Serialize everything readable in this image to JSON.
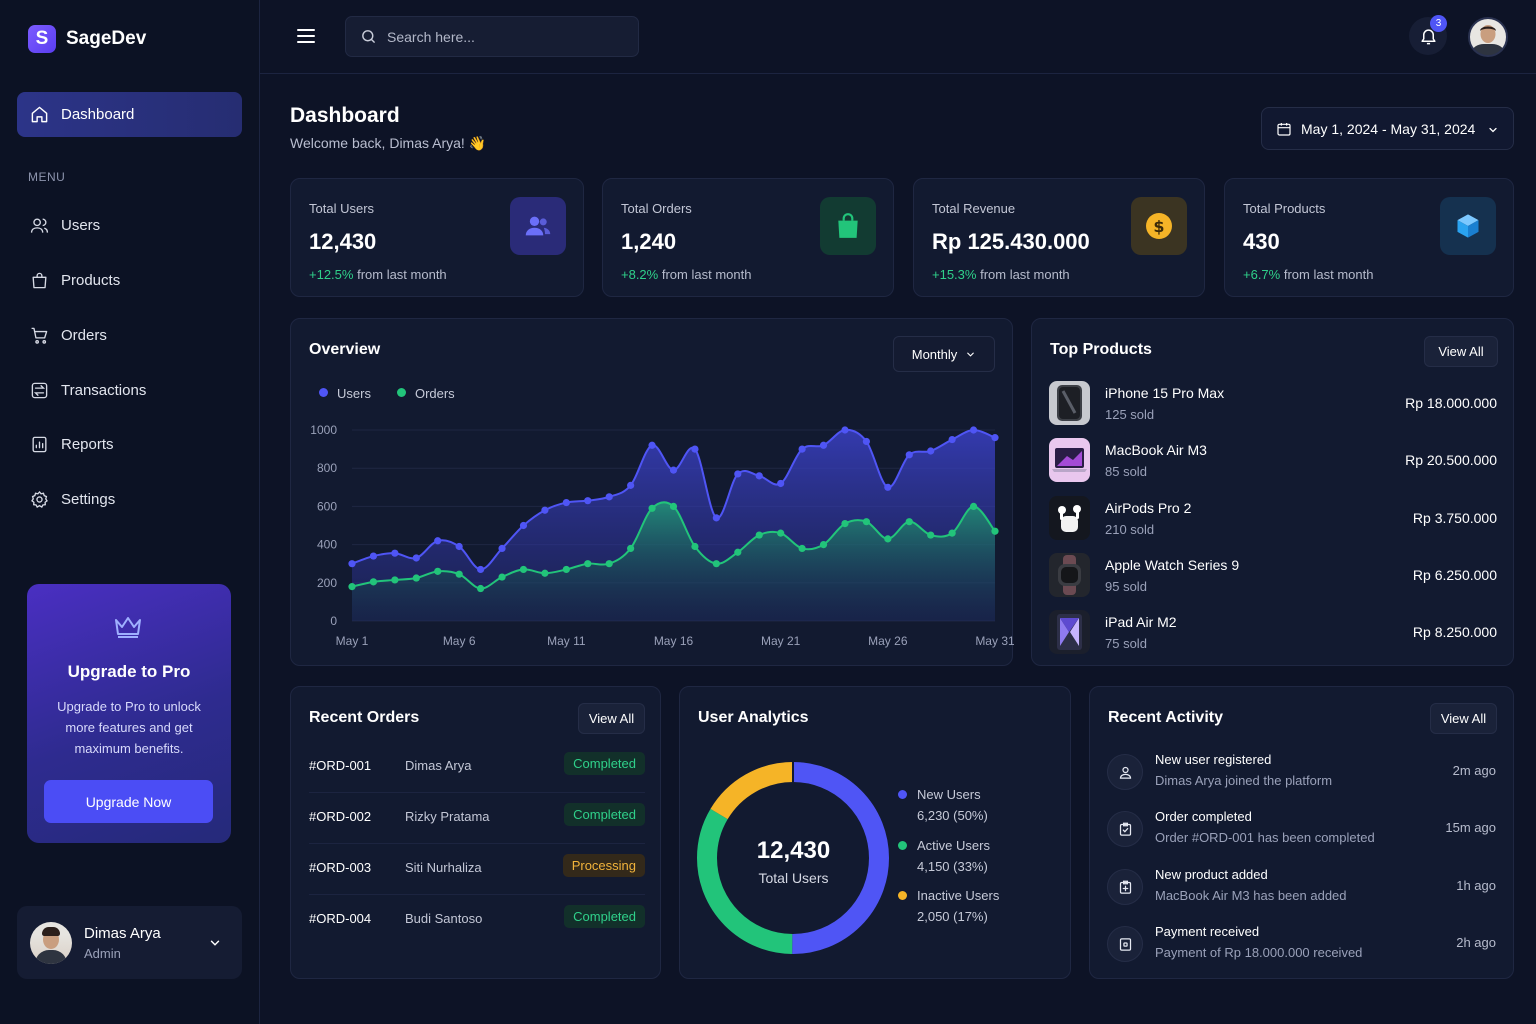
{
  "brand": {
    "logo_letter": "S",
    "name": "SageDev"
  },
  "sidebar": {
    "active": {
      "label": "Dashboard",
      "icon": "home-icon"
    },
    "menu_label": "MENU",
    "items": [
      {
        "label": "Users",
        "icon": "users-icon"
      },
      {
        "label": "Products",
        "icon": "bag-icon"
      },
      {
        "label": "Orders",
        "icon": "cart-icon"
      },
      {
        "label": "Transactions",
        "icon": "transfer-icon"
      },
      {
        "label": "Reports",
        "icon": "report-icon"
      },
      {
        "label": "Settings",
        "icon": "gear-icon"
      }
    ],
    "upgrade": {
      "title": "Upgrade to Pro",
      "text": "Upgrade to Pro to unlock more features and get maximum benefits.",
      "button": "Upgrade Now"
    },
    "profile": {
      "name": "Dimas Arya",
      "role": "Admin"
    }
  },
  "topbar": {
    "search_placeholder": "Search here...",
    "notifications": "3"
  },
  "header": {
    "title": "Dashboard",
    "subtitle": "Welcome back, Dimas Arya! 👋",
    "date_range": "May 1, 2024 - May 31, 2024"
  },
  "stats": [
    {
      "label": "Total Users",
      "value": "12,430",
      "change": "+12.5%",
      "suffix": "from last month",
      "color": "#5b5ff5"
    },
    {
      "label": "Total Orders",
      "value": "1,240",
      "change": "+8.2%",
      "suffix": "from last month",
      "color": "#22c47a"
    },
    {
      "label": "Total Revenue",
      "value": "Rp 125.430.000",
      "change": "+15.3%",
      "suffix": "from last month",
      "color": "#f5b427"
    },
    {
      "label": "Total Products",
      "value": "430",
      "change": "+6.7%",
      "suffix": "from last month",
      "color": "#2aa3f0"
    }
  ],
  "overview": {
    "title": "Overview",
    "period": "Monthly",
    "chart_data": {
      "type": "area",
      "x": [
        "May 1",
        "May 2",
        "May 3",
        "May 4",
        "May 5",
        "May 6",
        "May 7",
        "May 8",
        "May 9",
        "May 10",
        "May 11",
        "May 12",
        "May 13",
        "May 14",
        "May 15",
        "May 16",
        "May 17",
        "May 18",
        "May 19",
        "May 20",
        "May 21",
        "May 22",
        "May 23",
        "May 24",
        "May 25",
        "May 26",
        "May 27",
        "May 28",
        "May 29",
        "May 30",
        "May 31"
      ],
      "xticks": [
        "May 1",
        "May 6",
        "May 11",
        "May 16",
        "May 21",
        "May 26",
        "May 31"
      ],
      "ylim": [
        0,
        1000
      ],
      "yticks": [
        0,
        200,
        400,
        600,
        800,
        1000
      ],
      "grid": true,
      "legend": "top-left",
      "series": [
        {
          "name": "Users",
          "color": "#4f55f5",
          "values": [
            300,
            340,
            355,
            330,
            420,
            390,
            270,
            380,
            500,
            580,
            620,
            630,
            650,
            710,
            920,
            790,
            900,
            540,
            770,
            760,
            720,
            900,
            920,
            1000,
            940,
            700,
            870,
            890,
            950,
            1000,
            960
          ]
        },
        {
          "name": "Orders",
          "color": "#22c47a",
          "values": [
            180,
            205,
            215,
            225,
            260,
            245,
            170,
            230,
            270,
            250,
            270,
            300,
            300,
            380,
            590,
            600,
            390,
            300,
            360,
            450,
            460,
            380,
            400,
            510,
            520,
            430,
            520,
            450,
            460,
            600,
            470
          ]
        }
      ]
    }
  },
  "top_products": {
    "title": "Top Products",
    "view_all": "View All",
    "items": [
      {
        "name": "iPhone 15 Pro Max",
        "sold": "125 sold",
        "price": "Rp 18.000.000"
      },
      {
        "name": "MacBook Air M3",
        "sold": "85 sold",
        "price": "Rp 20.500.000"
      },
      {
        "name": "AirPods Pro 2",
        "sold": "210 sold",
        "price": "Rp 3.750.000"
      },
      {
        "name": "Apple Watch Series 9",
        "sold": "95 sold",
        "price": "Rp 6.250.000"
      },
      {
        "name": "iPad Air M2",
        "sold": "75 sold",
        "price": "Rp 8.250.000"
      }
    ]
  },
  "recent_orders": {
    "title": "Recent Orders",
    "view_all": "View All",
    "rows": [
      {
        "id": "#ORD-001",
        "name": "Dimas Arya",
        "status": "Completed",
        "kind": "completed"
      },
      {
        "id": "#ORD-002",
        "name": "Rizky Pratama",
        "status": "Completed",
        "kind": "completed"
      },
      {
        "id": "#ORD-003",
        "name": "Siti Nurhaliza",
        "status": "Processing",
        "kind": "processing"
      },
      {
        "id": "#ORD-004",
        "name": "Budi Santoso",
        "status": "Completed",
        "kind": "completed"
      }
    ]
  },
  "user_analytics": {
    "title": "User Analytics",
    "total": "12,430",
    "total_label": "Total Users",
    "chart_data": {
      "type": "pie",
      "slices": [
        {
          "name": "New Users",
          "value": 6230,
          "percent": 50,
          "label": "6,230 (50%)",
          "color": "#4f55f5"
        },
        {
          "name": "Active Users",
          "value": 4150,
          "percent": 33,
          "label": "4,150 (33%)",
          "color": "#22c47a"
        },
        {
          "name": "Inactive Users",
          "value": 2050,
          "percent": 17,
          "label": "2,050 (17%)",
          "color": "#f5b427"
        }
      ]
    }
  },
  "recent_activity": {
    "title": "Recent Activity",
    "view_all": "View All",
    "items": [
      {
        "title": "New user registered",
        "desc": "Dimas Arya joined the platform",
        "time": "2m ago",
        "icon": "user-icon"
      },
      {
        "title": "Order completed",
        "desc": "Order #ORD-001 has been completed",
        "time": "15m ago",
        "icon": "clipboard-check-icon"
      },
      {
        "title": "New product added",
        "desc": "MacBook Air M3 has been added",
        "time": "1h ago",
        "icon": "box-add-icon"
      },
      {
        "title": "Payment received",
        "desc": "Payment of Rp 18.000.000 received",
        "time": "2h ago",
        "icon": "receipt-icon"
      }
    ]
  }
}
